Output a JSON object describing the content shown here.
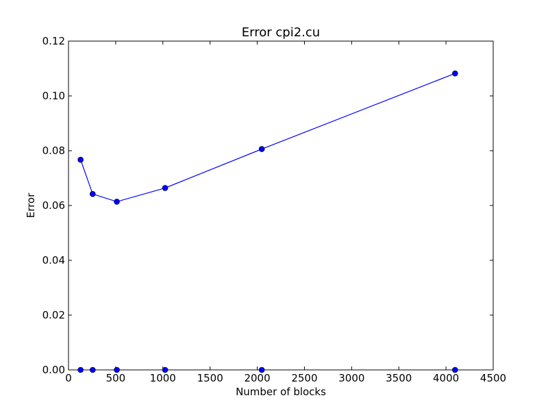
{
  "chart_data": {
    "type": "line",
    "title": "Error cpi2.cu",
    "xlabel": "Number of blocks",
    "ylabel": "Error",
    "xlim": [
      0,
      4500
    ],
    "ylim": [
      0,
      0.12
    ],
    "x_ticks": [
      0,
      500,
      1000,
      1500,
      2000,
      2500,
      3000,
      3500,
      4000,
      4500
    ],
    "y_ticks": [
      0,
      0.02,
      0.04,
      0.06,
      0.08,
      0.1,
      0.12
    ],
    "x_tick_labels": [
      "0",
      "500",
      "1000",
      "1500",
      "2000",
      "2500",
      "3000",
      "3500",
      "4000",
      "4500"
    ],
    "y_tick_labels": [
      "0.00",
      "0.02",
      "0.04",
      "0.06",
      "0.08",
      "0.10",
      "0.12"
    ],
    "grid": false,
    "legend": null,
    "x": [
      128,
      256,
      512,
      1024,
      2048,
      4096
    ],
    "series": [
      {
        "values": [
          0.0767,
          0.0642,
          0.0614,
          0.0664,
          0.0806,
          0.1082
        ],
        "color": "#0000ff",
        "marker": "circle",
        "line": true
      },
      {
        "values": [
          0,
          0,
          0,
          0,
          0,
          0
        ],
        "color": "#0000ff",
        "marker": "circle",
        "line": false
      }
    ]
  }
}
